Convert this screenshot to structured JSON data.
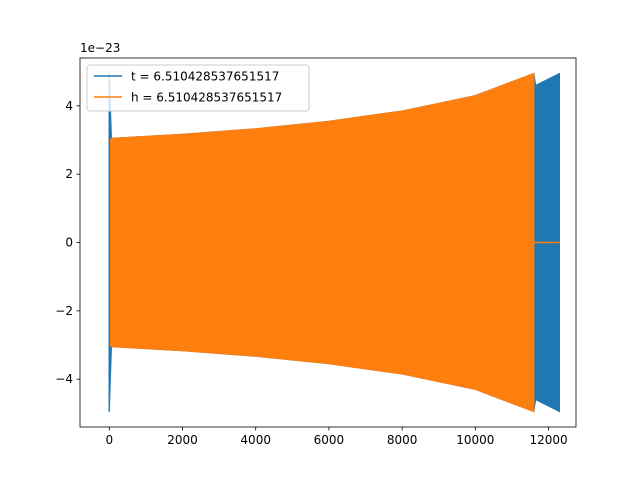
{
  "chart_data": {
    "type": "line",
    "title": "",
    "xlabel": "",
    "ylabel": "",
    "offset_label": "1e−23",
    "xlim": [
      -800,
      12750
    ],
    "ylim": [
      -5.4,
      5.4
    ],
    "xticks": [
      0,
      2000,
      4000,
      6000,
      8000,
      10000,
      12000
    ],
    "xtick_labels": [
      "0",
      "2000",
      "4000",
      "6000",
      "8000",
      "10000",
      "12000"
    ],
    "yticks": [
      -4,
      -2,
      0,
      2,
      4
    ],
    "ytick_labels": [
      "−4",
      "−2",
      "0",
      "2",
      "4"
    ],
    "grid": false,
    "legend_position": "top-left",
    "series": [
      {
        "name": "t = 6.510428537651517",
        "color": "#1f77b4",
        "envelope": [
          {
            "x": 0,
            "amp": 4.95
          },
          {
            "x": 60,
            "amp": 3.05
          },
          {
            "x": 2000,
            "amp": 3.17
          },
          {
            "x": 4000,
            "amp": 3.33
          },
          {
            "x": 6000,
            "amp": 3.55
          },
          {
            "x": 8000,
            "amp": 3.85
          },
          {
            "x": 10000,
            "amp": 4.3
          },
          {
            "x": 11600,
            "amp": 4.95
          },
          {
            "x": 11650,
            "amp": 4.6
          },
          {
            "x": 12300,
            "amp": 4.95
          }
        ],
        "ends_at": 12300
      },
      {
        "name": "h = 6.510428537651517",
        "color": "#ff7f0e",
        "envelope": [
          {
            "x": 0,
            "amp": 3.0
          },
          {
            "x": 60,
            "amp": 3.05
          },
          {
            "x": 2000,
            "amp": 3.17
          },
          {
            "x": 4000,
            "amp": 3.33
          },
          {
            "x": 6000,
            "amp": 3.55
          },
          {
            "x": 8000,
            "amp": 3.85
          },
          {
            "x": 10000,
            "amp": 4.3
          },
          {
            "x": 11600,
            "amp": 4.95
          }
        ],
        "ends_at": 11600,
        "zero_after": [
          11600,
          12300
        ]
      }
    ]
  }
}
